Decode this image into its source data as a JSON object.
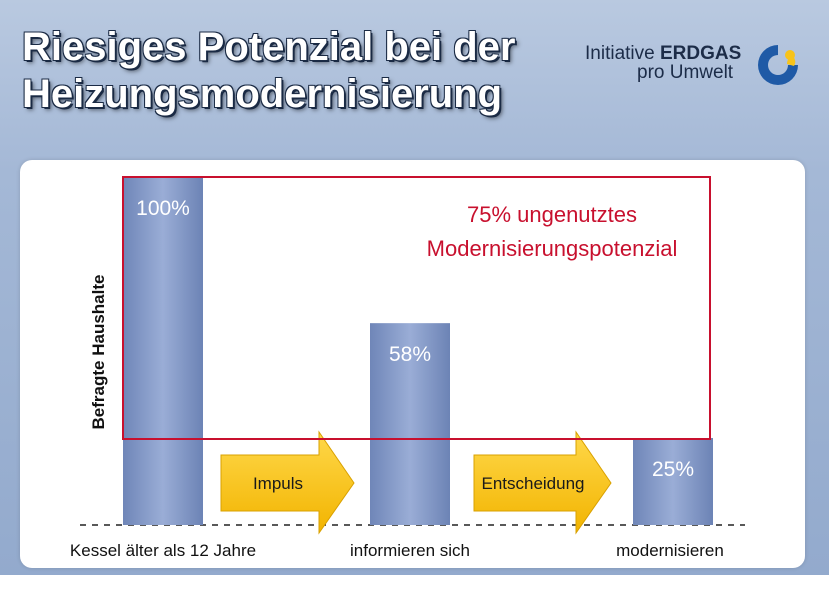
{
  "slide": {
    "title_line1": "Riesiges Potenzial bei der",
    "title_line2": "Heizungsmodernisierung"
  },
  "logo": {
    "line1_light": "Initiative",
    "line1_bold": "ERDGAS",
    "line2": "pro Umwelt"
  },
  "colors": {
    "bar": "#8498c4",
    "frame": "#c8102e",
    "arrow": "#f7c31a",
    "title": "#ffffff",
    "background": "#9fb4d4"
  },
  "chart_data": {
    "type": "bar",
    "title": "",
    "xlabel": "",
    "ylabel": "Befragte Haushalte",
    "ylim": [
      0,
      100
    ],
    "grid": false,
    "categories": [
      "Kessel älter als 12 Jahre",
      "informieren sich",
      "modernisieren"
    ],
    "values": [
      100,
      58,
      25
    ],
    "value_labels": [
      "100%",
      "58%",
      "25%"
    ],
    "arrows": [
      "Impuls",
      "Entscheidung"
    ],
    "annotation": [
      "75% ungenutztes",
      "Modernisierungspotenzial"
    ]
  }
}
